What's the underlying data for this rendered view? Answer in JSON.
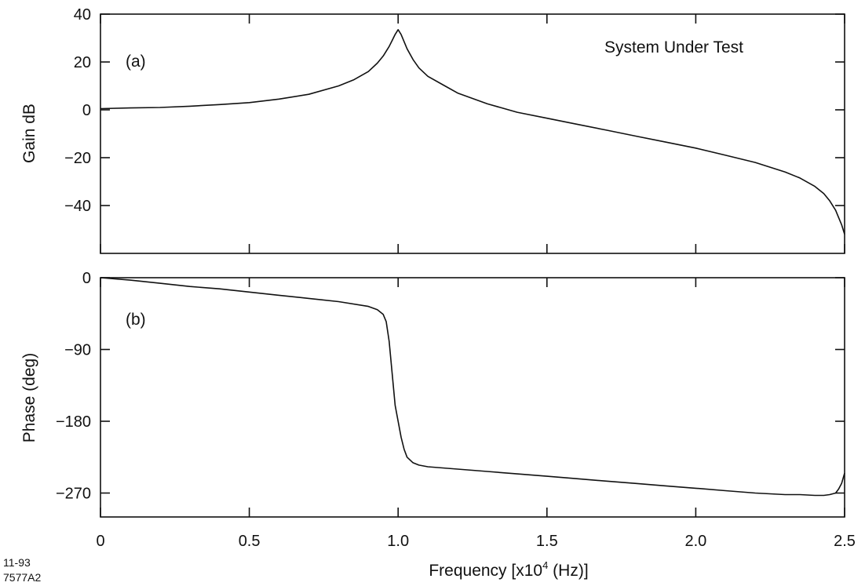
{
  "title": "System Under Test",
  "footnote": [
    "11-93",
    "7577A2"
  ],
  "xlabel_prefix": "Frequency  [x10",
  "xlabel_sup": "4",
  "xlabel_suffix": " (Hz)]",
  "x_tick_labels": [
    "0",
    "0.5",
    "1.0",
    "1.5",
    "2.0",
    "2.5"
  ],
  "chart_data": [
    {
      "type": "line",
      "panel_label": "(a)",
      "title": "System Under Test",
      "xlabel": "Frequency [x10^4 (Hz)]",
      "ylabel": "Gain dB",
      "xlim": [
        0,
        2.5
      ],
      "ylim": [
        -60,
        40
      ],
      "y_ticks": [
        40,
        20,
        0,
        -20,
        -40
      ],
      "y_tick_labels": [
        "40",
        "20",
        "0",
        "−20",
        "−40"
      ],
      "grid": false,
      "series": [
        {
          "x": [
            0,
            0.1,
            0.2,
            0.3,
            0.4,
            0.5,
            0.6,
            0.7,
            0.8,
            0.85,
            0.9,
            0.93,
            0.95,
            0.97,
            0.98,
            0.99,
            1.0,
            1.01,
            1.02,
            1.03,
            1.05,
            1.07,
            1.1,
            1.15,
            1.2,
            1.3,
            1.4,
            1.5,
            1.6,
            1.7,
            1.8,
            1.9,
            2.0,
            2.1,
            2.2,
            2.3,
            2.35,
            2.4,
            2.43,
            2.45,
            2.47,
            2.48,
            2.49,
            2.5
          ],
          "y": [
            0.5,
            0.8,
            1.0,
            1.5,
            2.2,
            3.0,
            4.5,
            6.5,
            10.0,
            12.5,
            16.0,
            19.5,
            22.5,
            26.5,
            29.0,
            31.5,
            33.5,
            31.5,
            28.5,
            25.5,
            21.0,
            17.5,
            14.0,
            10.5,
            7.0,
            2.5,
            -1.0,
            -3.5,
            -6.0,
            -8.5,
            -11.0,
            -13.5,
            -16.0,
            -19.0,
            -22.0,
            -26.0,
            -28.5,
            -32.0,
            -35.0,
            -38.0,
            -42.0,
            -45.0,
            -48.0,
            -52.0
          ]
        }
      ]
    },
    {
      "type": "line",
      "panel_label": "(b)",
      "xlabel": "Frequency [x10^4 (Hz)]",
      "ylabel": "Phase  (deg)",
      "xlim": [
        0,
        2.5
      ],
      "ylim": [
        -300,
        0
      ],
      "y_ticks": [
        0,
        -90,
        -180,
        -270
      ],
      "y_tick_labels": [
        "0",
        "−90",
        "−180",
        "−270"
      ],
      "grid": false,
      "series": [
        {
          "x": [
            0,
            0.1,
            0.2,
            0.3,
            0.4,
            0.5,
            0.6,
            0.7,
            0.8,
            0.9,
            0.93,
            0.95,
            0.96,
            0.97,
            0.98,
            0.99,
            1.0,
            1.01,
            1.02,
            1.03,
            1.05,
            1.07,
            1.1,
            1.2,
            1.3,
            1.4,
            1.5,
            1.6,
            1.7,
            1.8,
            1.9,
            2.0,
            2.1,
            2.2,
            2.3,
            2.35,
            2.4,
            2.43,
            2.45,
            2.47,
            2.48,
            2.49,
            2.5
          ],
          "y": [
            0,
            -3,
            -7,
            -11,
            -14,
            -18,
            -22,
            -26,
            -30,
            -36,
            -40,
            -46,
            -55,
            -80,
            -120,
            -160,
            -180,
            -200,
            -215,
            -225,
            -232,
            -235,
            -237,
            -240,
            -243,
            -246,
            -249,
            -252,
            -255,
            -258,
            -261,
            -264,
            -267,
            -270,
            -272,
            -272,
            -273,
            -273,
            -272,
            -270,
            -265,
            -258,
            -245
          ]
        }
      ]
    }
  ]
}
